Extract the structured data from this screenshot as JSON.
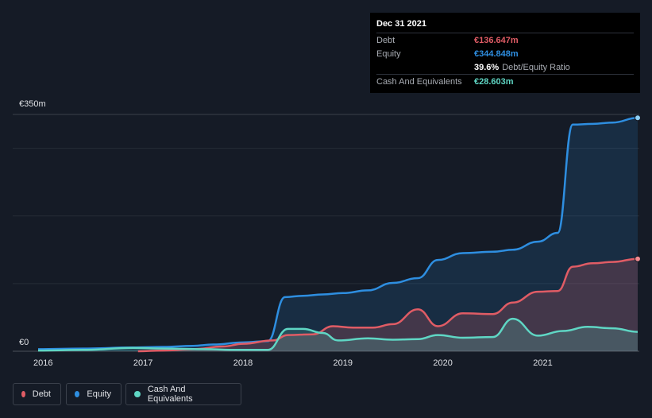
{
  "chart_data": {
    "type": "area",
    "title": "",
    "xlabel": "",
    "ylabel": "",
    "y_axis_labels": {
      "top": "€350m",
      "bottom": "€0"
    },
    "ylim": [
      0,
      350
    ],
    "xlim": [
      2015.95,
      2021.95
    ],
    "x_ticks": [
      "2016",
      "2017",
      "2018",
      "2019",
      "2020",
      "2021"
    ],
    "gridlines": true,
    "series": [
      {
        "name": "Equity",
        "color": "#2e8ee0",
        "end_marker": true,
        "points": [
          [
            2015.95,
            3
          ],
          [
            2016.4,
            4
          ],
          [
            2016.9,
            5.5
          ],
          [
            2017.2,
            6.5
          ],
          [
            2017.5,
            8
          ],
          [
            2017.7,
            10
          ],
          [
            2018.0,
            13
          ],
          [
            2018.25,
            15
          ],
          [
            2018.42,
            80
          ],
          [
            2018.6,
            82
          ],
          [
            2018.8,
            84
          ],
          [
            2019.0,
            86
          ],
          [
            2019.25,
            90
          ],
          [
            2019.5,
            101
          ],
          [
            2019.75,
            108
          ],
          [
            2019.95,
            135
          ],
          [
            2020.2,
            145
          ],
          [
            2020.5,
            147
          ],
          [
            2020.7,
            150
          ],
          [
            2020.95,
            162
          ],
          [
            2021.15,
            175
          ],
          [
            2021.3,
            335
          ],
          [
            2021.5,
            336
          ],
          [
            2021.7,
            338
          ],
          [
            2021.95,
            345
          ]
        ]
      },
      {
        "name": "Debt",
        "color": "#e05c65",
        "end_marker": true,
        "points": [
          [
            2016.95,
            0
          ],
          [
            2017.2,
            1
          ],
          [
            2017.5,
            3
          ],
          [
            2017.8,
            7
          ],
          [
            2018.0,
            11
          ],
          [
            2018.3,
            16
          ],
          [
            2018.45,
            24
          ],
          [
            2018.7,
            25
          ],
          [
            2018.9,
            37
          ],
          [
            2019.1,
            35
          ],
          [
            2019.3,
            35
          ],
          [
            2019.5,
            40
          ],
          [
            2019.75,
            62
          ],
          [
            2019.95,
            37
          ],
          [
            2020.2,
            56
          ],
          [
            2020.5,
            55
          ],
          [
            2020.7,
            72
          ],
          [
            2020.95,
            88
          ],
          [
            2021.15,
            89
          ],
          [
            2021.3,
            125
          ],
          [
            2021.5,
            130
          ],
          [
            2021.7,
            132
          ],
          [
            2021.95,
            136.6
          ]
        ]
      },
      {
        "name": "Cash And Equivalents",
        "color": "#5fd6c4",
        "end_marker": false,
        "points": [
          [
            2015.95,
            1
          ],
          [
            2016.4,
            2
          ],
          [
            2016.9,
            5
          ],
          [
            2017.2,
            4
          ],
          [
            2017.6,
            3
          ],
          [
            2017.95,
            2
          ],
          [
            2018.25,
            2
          ],
          [
            2018.45,
            33
          ],
          [
            2018.6,
            33
          ],
          [
            2018.8,
            27
          ],
          [
            2018.95,
            16
          ],
          [
            2019.25,
            19
          ],
          [
            2019.5,
            17
          ],
          [
            2019.75,
            18
          ],
          [
            2019.95,
            24
          ],
          [
            2020.2,
            20
          ],
          [
            2020.5,
            21
          ],
          [
            2020.7,
            48
          ],
          [
            2020.95,
            23
          ],
          [
            2021.2,
            30
          ],
          [
            2021.45,
            36
          ],
          [
            2021.7,
            34
          ],
          [
            2021.95,
            28.6
          ]
        ]
      }
    ],
    "tooltip": {
      "date": "Dec 31 2021",
      "rows": [
        {
          "label": "Debt",
          "value": "€136.647m",
          "color": "#e05c65"
        },
        {
          "label": "Equity",
          "value": "€344.848m",
          "color": "#2e8ee0"
        },
        {
          "label": "",
          "value": "39.6%",
          "suffix": "Debt/Equity Ratio",
          "color": "#ffffff"
        },
        {
          "label": "Cash And Equivalents",
          "value": "€28.603m",
          "color": "#5fd6c4"
        }
      ]
    },
    "legend": [
      {
        "label": "Debt",
        "color": "#e05c65"
      },
      {
        "label": "Equity",
        "color": "#2e8ee0"
      },
      {
        "label": "Cash And Equivalents",
        "color": "#5fd6c4"
      }
    ]
  }
}
